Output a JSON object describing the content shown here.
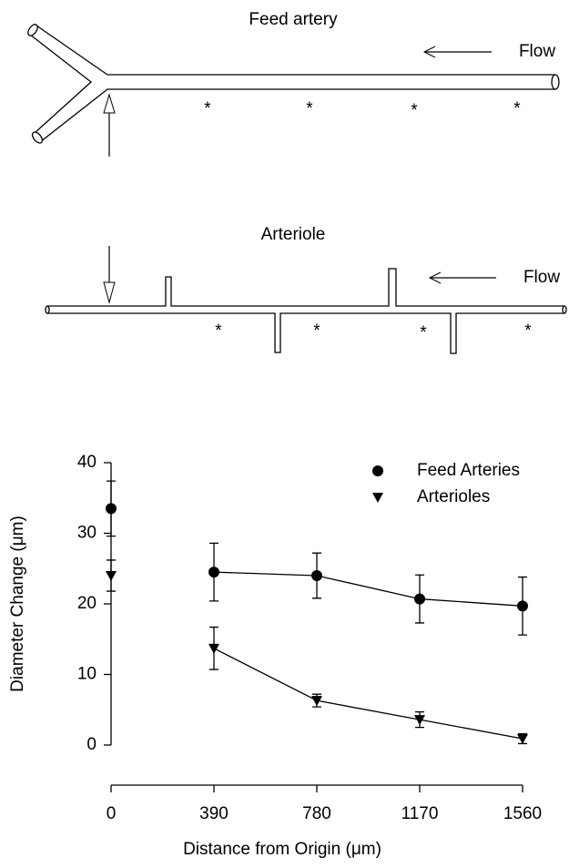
{
  "diagrams": {
    "feed_artery": {
      "label": "Feed artery",
      "flow": "Flow",
      "markers": [
        "*",
        "*",
        "*",
        "*"
      ]
    },
    "arteriole": {
      "label": "Arteriole",
      "flow": "Flow",
      "markers": [
        "*",
        "*",
        "*",
        "*"
      ]
    }
  },
  "chart_data": {
    "type": "scatter-line",
    "x_label": "Distance from Origin (μm)",
    "y_label": "Diameter Change (μm)",
    "x": [
      0,
      390,
      780,
      1170,
      1560
    ],
    "xlim": [
      0,
      1560
    ],
    "xticks": [
      0,
      390,
      780,
      1170,
      1560
    ],
    "ylim": [
      0,
      40
    ],
    "yticks": [
      0,
      10,
      20,
      30,
      40
    ],
    "legend": "upper right",
    "series": [
      {
        "name": "Feed Arteries",
        "marker": "circle",
        "color": "#000",
        "values": [
          33.5,
          24.5,
          24,
          20.7,
          19.7
        ],
        "errors": [
          3.9,
          4.1,
          3.2,
          3.4,
          4.1
        ],
        "joined": [
          false,
          true,
          true,
          true,
          true
        ]
      },
      {
        "name": "Arterioles",
        "marker": "triangle-down",
        "color": "#000",
        "values": [
          24,
          13.7,
          6.3,
          3.6,
          0.9
        ],
        "errors": [
          2.2,
          3.0,
          0.9,
          1.1,
          0.7
        ],
        "joined": [
          false,
          true,
          true,
          true,
          true
        ]
      }
    ]
  }
}
